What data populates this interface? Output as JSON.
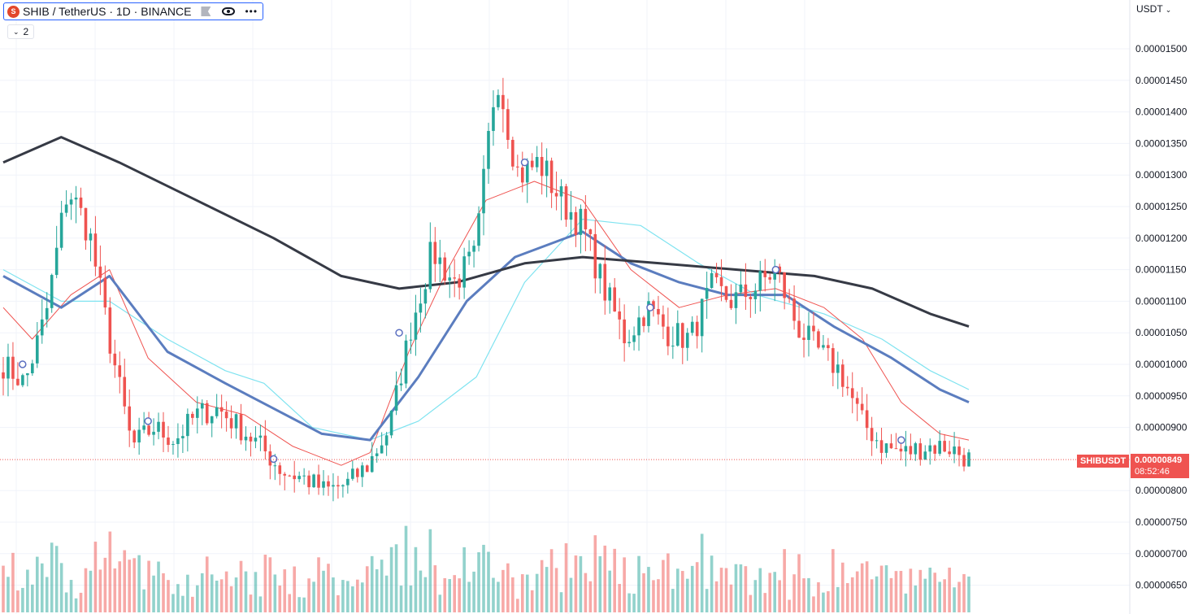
{
  "header": {
    "symbol_title": "SHIB / TetherUS · 1D · BINANCE",
    "icon": "shiba-coin-icon",
    "indicator_count": "2",
    "currency": "USDT"
  },
  "price_axis": {
    "labels": [
      "0.00001500",
      "0.00001450",
      "0.00001400",
      "0.00001350",
      "0.00001300",
      "0.00001250",
      "0.00001200",
      "0.00001150",
      "0.00001100",
      "0.00001050",
      "0.00001000",
      "0.00000950",
      "0.00000900",
      "0.00000800",
      "0.00000750",
      "0.00000700",
      "0.00000650"
    ]
  },
  "last_price": {
    "ticker": "SHIBUSDT",
    "price": "0.00000849",
    "countdown": "08:52:46",
    "color": "#ef5350"
  },
  "colors": {
    "up": "#26a69a",
    "down": "#ef5350",
    "ma_fast": "#ef5350",
    "ma_mid": "#5b7dbf",
    "ma_cyan": "#7fe3f0",
    "ma_slow": "#363a45"
  },
  "chart_data": {
    "type": "candlestick",
    "ylim": [
      6.3e-06,
      1.57e-05
    ],
    "grid": true,
    "close_path_keypoints": [
      1e-05,
      9.7e-06,
      1.08e-05,
      1.28e-05,
      1.21e-05,
      1.03e-05,
      8.7e-06,
      9e-06,
      8.8e-06,
      9.2e-06,
      9.3e-06,
      9e-06,
      8.7e-06,
      8.3e-06,
      8.2e-06,
      8e-06,
      8.1e-06,
      8.4e-06,
      9e-06,
      1.06e-05,
      1.18e-05,
      1.13e-05,
      1.17e-05,
      1.47e-05,
      1.3e-05,
      1.32e-05,
      1.26e-05,
      1.22e-05,
      1.12e-05,
      1.04e-05,
      1.09e-05,
      1.05e-05,
      1.04e-05,
      1.12e-05,
      1.1e-05,
      1.12e-05,
      1.15e-05,
      1.06e-05,
      1.02e-05,
      9.9e-06,
      9.1e-06,
      8.7e-06,
      8.6e-06,
      8.7e-06,
      8.7e-06,
      8.5e-06
    ],
    "ma_fast_keypoints": [
      [
        0,
        1.09e-05
      ],
      [
        0.03,
        1.04e-05
      ],
      [
        0.07,
        1.11e-05
      ],
      [
        0.11,
        1.15e-05
      ],
      [
        0.15,
        1.01e-05
      ],
      [
        0.2,
        9.4e-06
      ],
      [
        0.25,
        9.2e-06
      ],
      [
        0.3,
        8.7e-06
      ],
      [
        0.35,
        8.4e-06
      ],
      [
        0.38,
        8.6e-06
      ],
      [
        0.42,
        1.02e-05
      ],
      [
        0.46,
        1.15e-05
      ],
      [
        0.5,
        1.26e-05
      ],
      [
        0.55,
        1.29e-05
      ],
      [
        0.6,
        1.26e-05
      ],
      [
        0.65,
        1.15e-05
      ],
      [
        0.7,
        1.09e-05
      ],
      [
        0.75,
        1.11e-05
      ],
      [
        0.8,
        1.12e-05
      ],
      [
        0.85,
        1.09e-05
      ],
      [
        0.89,
        1.04e-05
      ],
      [
        0.93,
        9.4e-06
      ],
      [
        0.97,
        8.9e-06
      ],
      [
        1,
        8.8e-06
      ]
    ],
    "ma_mid_keypoints": [
      [
        0,
        1.14e-05
      ],
      [
        0.06,
        1.09e-05
      ],
      [
        0.11,
        1.14e-05
      ],
      [
        0.17,
        1.02e-05
      ],
      [
        0.23,
        9.7e-06
      ],
      [
        0.28,
        9.3e-06
      ],
      [
        0.33,
        8.9e-06
      ],
      [
        0.38,
        8.8e-06
      ],
      [
        0.43,
        9.8e-06
      ],
      [
        0.48,
        1.1e-05
      ],
      [
        0.53,
        1.17e-05
      ],
      [
        0.6,
        1.21e-05
      ],
      [
        0.65,
        1.16e-05
      ],
      [
        0.7,
        1.13e-05
      ],
      [
        0.75,
        1.11e-05
      ],
      [
        0.81,
        1.11e-05
      ],
      [
        0.86,
        1.06e-05
      ],
      [
        0.92,
        1.01e-05
      ],
      [
        0.97,
        9.6e-06
      ],
      [
        1,
        9.4e-06
      ]
    ],
    "ma_cyan_keypoints": [
      [
        0,
        1.15e-05
      ],
      [
        0.06,
        1.1e-05
      ],
      [
        0.11,
        1.1e-05
      ],
      [
        0.17,
        1.04e-05
      ],
      [
        0.23,
        9.9e-06
      ],
      [
        0.27,
        9.7e-06
      ],
      [
        0.32,
        9e-06
      ],
      [
        0.38,
        8.8e-06
      ],
      [
        0.43,
        9.1e-06
      ],
      [
        0.49,
        9.8e-06
      ],
      [
        0.54,
        1.13e-05
      ],
      [
        0.6,
        1.23e-05
      ],
      [
        0.66,
        1.22e-05
      ],
      [
        0.72,
        1.16e-05
      ],
      [
        0.78,
        1.11e-05
      ],
      [
        0.85,
        1.08e-05
      ],
      [
        0.91,
        1.04e-05
      ],
      [
        0.96,
        9.9e-06
      ],
      [
        1,
        9.6e-06
      ]
    ],
    "ma_slow_keypoints": [
      [
        0,
        1.32e-05
      ],
      [
        0.06,
        1.36e-05
      ],
      [
        0.12,
        1.32e-05
      ],
      [
        0.2,
        1.26e-05
      ],
      [
        0.28,
        1.2e-05
      ],
      [
        0.35,
        1.14e-05
      ],
      [
        0.41,
        1.12e-05
      ],
      [
        0.47,
        1.13e-05
      ],
      [
        0.54,
        1.16e-05
      ],
      [
        0.6,
        1.17e-05
      ],
      [
        0.68,
        1.16e-05
      ],
      [
        0.76,
        1.15e-05
      ],
      [
        0.84,
        1.14e-05
      ],
      [
        0.9,
        1.12e-05
      ],
      [
        0.96,
        1.08e-05
      ],
      [
        1,
        1.06e-05
      ]
    ]
  }
}
